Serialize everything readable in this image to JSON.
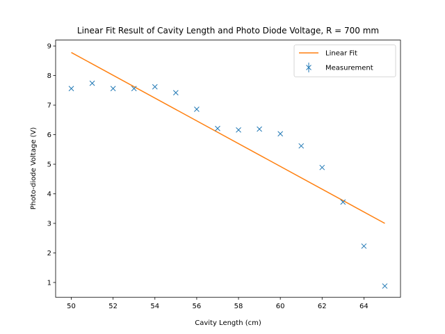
{
  "chart_data": {
    "type": "scatter",
    "title": "Linear Fit Result of Cavity Length and Photo Diode Voltage, R = 700 mm",
    "xlabel": "Cavity Length (cm)",
    "ylabel": "Photo-diode Voltage (V)",
    "xlim": [
      49.25,
      65.75
    ],
    "ylim": [
      0.5,
      9.2
    ],
    "xticks": [
      50,
      52,
      54,
      56,
      58,
      60,
      62,
      64
    ],
    "yticks": [
      1,
      2,
      3,
      4,
      5,
      6,
      7,
      8,
      9
    ],
    "grid": false,
    "legend_position": "top-right",
    "series": [
      {
        "name": "Linear Fit",
        "type": "line",
        "color": "#ff7f0e",
        "x": [
          50,
          65
        ],
        "y": [
          8.78,
          3.0
        ]
      },
      {
        "name": "Measurement",
        "type": "scatter",
        "marker": "x",
        "color": "#1f77b4",
        "x": [
          50,
          51,
          52,
          53,
          54,
          55,
          56,
          57,
          58,
          59,
          60,
          61,
          62,
          63,
          64,
          65
        ],
        "y": [
          7.56,
          7.74,
          7.56,
          7.56,
          7.62,
          7.42,
          6.86,
          6.21,
          6.16,
          6.19,
          6.03,
          5.62,
          4.89,
          3.72,
          2.23,
          0.88
        ]
      }
    ]
  }
}
